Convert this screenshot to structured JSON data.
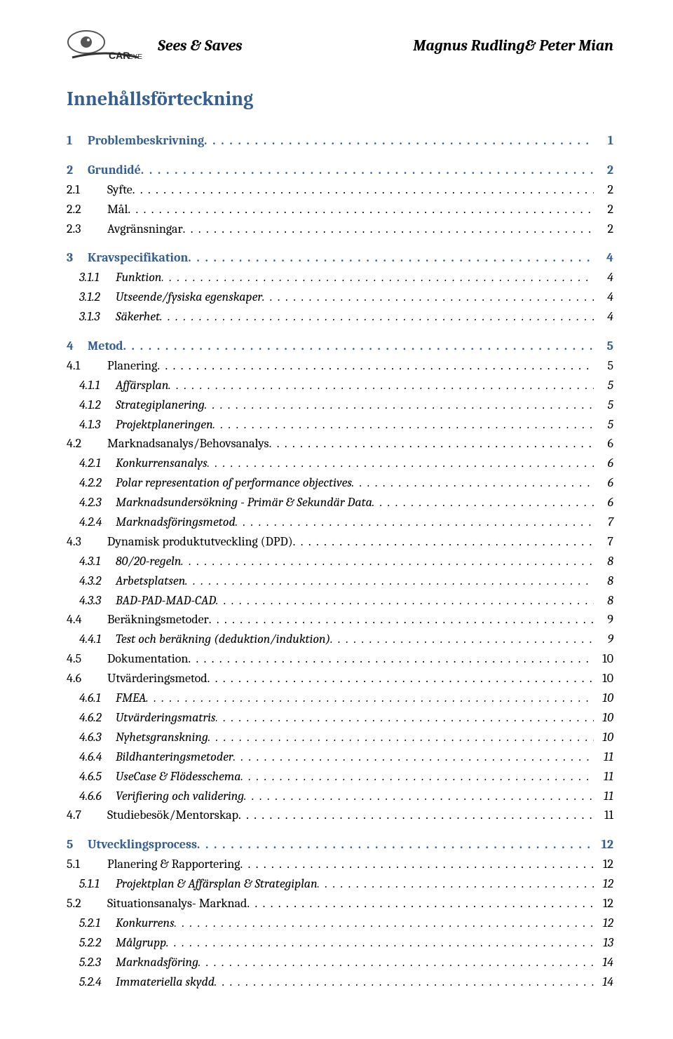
{
  "colors": {
    "accent": "#365f91",
    "text": "#000000",
    "bg": "#ffffff"
  },
  "typography": {
    "base_size_pt": 18,
    "title_size_pt": 28,
    "header_size_pt": 22,
    "font_family": "Cambria/Georgia serif"
  },
  "header": {
    "left": "Sees & Saves",
    "right": "Magnus Rudling& Peter Mian",
    "logo_alt": "CarEye logo"
  },
  "toc_title": "Innehållsförteckning",
  "toc": [
    {
      "lvl": 1,
      "num": "1",
      "txt": "Problembeskrivning",
      "pg": "1"
    },
    {
      "lvl": 1,
      "num": "2",
      "txt": "Grundidé",
      "pg": "2"
    },
    {
      "lvl": 2,
      "num": "2.1",
      "txt": "Syfte",
      "pg": "2"
    },
    {
      "lvl": 2,
      "num": "2.2",
      "txt": "Mål",
      "pg": "2"
    },
    {
      "lvl": 2,
      "num": "2.3",
      "txt": "Avgränsningar",
      "pg": "2"
    },
    {
      "lvl": 1,
      "num": "3",
      "txt": "Kravspecifikation",
      "pg": "4"
    },
    {
      "lvl": 3,
      "num": "3.1.1",
      "txt": "Funktion",
      "pg": "4"
    },
    {
      "lvl": 3,
      "num": "3.1.2",
      "txt": "Utseende/fysiska egenskaper",
      "pg": "4"
    },
    {
      "lvl": 3,
      "num": "3.1.3",
      "txt": "Säkerhet",
      "pg": "4"
    },
    {
      "lvl": 1,
      "num": "4",
      "txt": "Metod",
      "pg": "5"
    },
    {
      "lvl": 2,
      "num": "4.1",
      "txt": "Planering",
      "pg": "5"
    },
    {
      "lvl": 3,
      "num": "4.1.1",
      "txt": "Affärsplan",
      "pg": "5"
    },
    {
      "lvl": 3,
      "num": "4.1.2",
      "txt": "Strategiplanering",
      "pg": "5"
    },
    {
      "lvl": 3,
      "num": "4.1.3",
      "txt": "Projektplaneringen",
      "pg": "5"
    },
    {
      "lvl": 2,
      "num": "4.2",
      "txt": "Marknadsanalys/Behovsanalys",
      "pg": "6"
    },
    {
      "lvl": 3,
      "num": "4.2.1",
      "txt": "Konkurrensanalys",
      "pg": "6"
    },
    {
      "lvl": 3,
      "num": "4.2.2",
      "txt": "Polar representation of performance objectives",
      "pg": "6"
    },
    {
      "lvl": 3,
      "num": "4.2.3",
      "txt": "Marknadsundersökning - Primär & Sekundär Data",
      "pg": "6"
    },
    {
      "lvl": 3,
      "num": "4.2.4",
      "txt": "Marknadsföringsmetod",
      "pg": "7"
    },
    {
      "lvl": 2,
      "num": "4.3",
      "txt": "Dynamisk produktutveckling (DPD)",
      "pg": "7"
    },
    {
      "lvl": 3,
      "num": "4.3.1",
      "txt": "80/20-regeln",
      "pg": "8"
    },
    {
      "lvl": 3,
      "num": "4.3.2",
      "txt": "Arbetsplatsen",
      "pg": "8"
    },
    {
      "lvl": 3,
      "num": "4.3.3",
      "txt": "BAD-PAD-MAD-CAD",
      "pg": "8"
    },
    {
      "lvl": 2,
      "num": "4.4",
      "txt": "Beräkningsmetoder",
      "pg": "9"
    },
    {
      "lvl": 3,
      "num": "4.4.1",
      "txt": "Test och beräkning (deduktion/induktion)",
      "pg": "9"
    },
    {
      "lvl": 2,
      "num": "4.5",
      "txt": "Dokumentation",
      "pg": "10"
    },
    {
      "lvl": 2,
      "num": "4.6",
      "txt": "Utvärderingsmetod",
      "pg": "10"
    },
    {
      "lvl": 3,
      "num": "4.6.1",
      "txt": "FMEA",
      "pg": "10"
    },
    {
      "lvl": 3,
      "num": "4.6.2",
      "txt": "Utvärderingsmatris",
      "pg": "10"
    },
    {
      "lvl": 3,
      "num": "4.6.3",
      "txt": "Nyhetsgranskning",
      "pg": "10"
    },
    {
      "lvl": 3,
      "num": "4.6.4",
      "txt": "Bildhanteringsmetoder",
      "pg": "11"
    },
    {
      "lvl": 3,
      "num": "4.6.5",
      "txt": "UseCase & Flödesschema",
      "pg": "11"
    },
    {
      "lvl": 3,
      "num": "4.6.6",
      "txt": "Verifiering och validering",
      "pg": "11"
    },
    {
      "lvl": 2,
      "num": "4.7",
      "txt": "Studiebesök/Mentorskap",
      "pg": "11"
    },
    {
      "lvl": 1,
      "num": "5",
      "txt": "Utvecklingsprocess",
      "pg": "12"
    },
    {
      "lvl": 2,
      "num": "5.1",
      "txt": "Planering & Rapportering",
      "pg": "12"
    },
    {
      "lvl": 3,
      "num": "5.1.1",
      "txt": "Projektplan & Affärsplan & Strategiplan",
      "pg": "12"
    },
    {
      "lvl": 2,
      "num": "5.2",
      "txt": "Situationsanalys- Marknad",
      "pg": "12"
    },
    {
      "lvl": 3,
      "num": "5.2.1",
      "txt": "Konkurrens",
      "pg": "12"
    },
    {
      "lvl": 3,
      "num": "5.2.2",
      "txt": "Målgrupp",
      "pg": "13"
    },
    {
      "lvl": 3,
      "num": "5.2.3",
      "txt": "Marknadsföring",
      "pg": "14"
    },
    {
      "lvl": 3,
      "num": "5.2.4",
      "txt": "Immateriella skydd",
      "pg": "14"
    }
  ]
}
